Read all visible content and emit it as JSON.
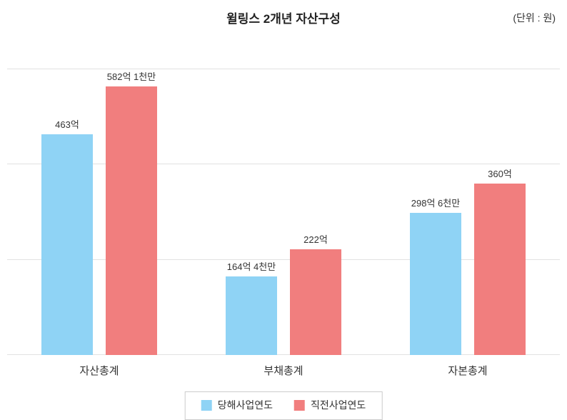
{
  "chart_data": {
    "type": "bar",
    "title": "윌링스 2개년 자산구성",
    "unit_label": "(단위 : 원)",
    "categories": [
      "자산총계",
      "부채총계",
      "자본총계"
    ],
    "series": [
      {
        "name": "당해사업연도",
        "color": "#8FD3F5",
        "values_eok": [
          463,
          164.4,
          298.6
        ],
        "value_labels": [
          "463억",
          "164억 4천만",
          "298억 6천만"
        ]
      },
      {
        "name": "직전사업연도",
        "color": "#F17E7E",
        "values_eok": [
          582.1,
          222,
          360
        ],
        "value_labels": [
          "582억 1천만",
          "222억",
          "360억"
        ]
      }
    ],
    "ylim_eok": [
      0,
      600
    ],
    "gridline_step_eok": 200,
    "grid": true,
    "legend_position": "bottom"
  }
}
